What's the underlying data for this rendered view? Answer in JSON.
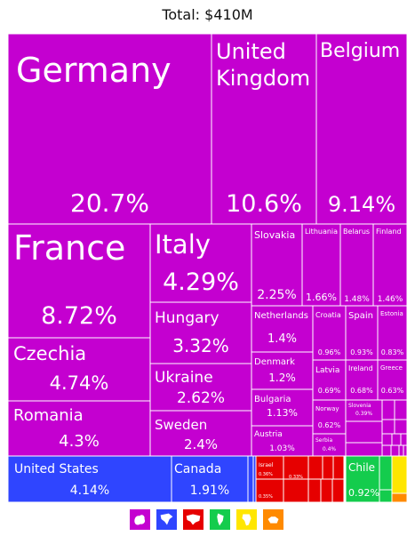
{
  "header": {
    "title": "Total: $410M"
  },
  "colors": {
    "europe": "#c400d0",
    "north_america": "#2f45ff",
    "asia": "#e60000",
    "south_america": "#14cc4d",
    "africa": "#ffe600",
    "oceania": "#ff8a00"
  },
  "legend": [
    {
      "region": "europe",
      "icon": "europe-icon",
      "color": "#c400d0"
    },
    {
      "region": "north-america",
      "icon": "north-america-icon",
      "color": "#2f45ff"
    },
    {
      "region": "asia",
      "icon": "asia-icon",
      "color": "#e60000"
    },
    {
      "region": "south-america",
      "icon": "south-america-icon",
      "color": "#14cc4d"
    },
    {
      "region": "africa",
      "icon": "africa-icon",
      "color": "#ffe600"
    },
    {
      "region": "oceania",
      "icon": "oceania-icon",
      "color": "#ff8a00"
    }
  ],
  "chart_data": {
    "type": "treemap",
    "total": "$410M",
    "items": [
      {
        "name": "Germany",
        "share": "20.7%",
        "region": "europe"
      },
      {
        "name": "United Kingdom",
        "share": "10.6%",
        "region": "europe"
      },
      {
        "name": "Belgium",
        "share": "9.14%",
        "region": "europe"
      },
      {
        "name": "France",
        "share": "8.72%",
        "region": "europe"
      },
      {
        "name": "Czechia",
        "share": "4.74%",
        "region": "europe"
      },
      {
        "name": "Romania",
        "share": "4.3%",
        "region": "europe"
      },
      {
        "name": "Italy",
        "share": "4.29%",
        "region": "europe"
      },
      {
        "name": "Hungary",
        "share": "3.32%",
        "region": "europe"
      },
      {
        "name": "Ukraine",
        "share": "2.62%",
        "region": "europe"
      },
      {
        "name": "Sweden",
        "share": "2.4%",
        "region": "europe"
      },
      {
        "name": "Slovakia",
        "share": "2.25%",
        "region": "europe"
      },
      {
        "name": "Lithuania",
        "share": "1.66%",
        "region": "europe"
      },
      {
        "name": "Belarus",
        "share": "1.48%",
        "region": "europe"
      },
      {
        "name": "Finland",
        "share": "1.46%",
        "region": "europe"
      },
      {
        "name": "Netherlands",
        "share": "1.4%",
        "region": "europe"
      },
      {
        "name": "Croatia",
        "share": "0.96%",
        "region": "europe"
      },
      {
        "name": "Spain",
        "share": "0.93%",
        "region": "europe"
      },
      {
        "name": "Estonia",
        "share": "0.83%",
        "region": "europe"
      },
      {
        "name": "Denmark",
        "share": "1.2%",
        "region": "europe"
      },
      {
        "name": "Latvia",
        "share": "0.69%",
        "region": "europe"
      },
      {
        "name": "Ireland",
        "share": "0.68%",
        "region": "europe"
      },
      {
        "name": "Greece",
        "share": "0.63%",
        "region": "europe"
      },
      {
        "name": "Bulgaria",
        "share": "1.13%",
        "region": "europe"
      },
      {
        "name": "Norway",
        "share": "0.62%",
        "region": "europe"
      },
      {
        "name": "Slovenia",
        "share": "0.39%",
        "region": "europe"
      },
      {
        "name": "Austria",
        "share": "1.03%",
        "region": "europe"
      },
      {
        "name": "Serbia",
        "share": "0.4%",
        "region": "europe"
      },
      {
        "name": "",
        "share": "",
        "region": "europe"
      },
      {
        "name": "",
        "share": "",
        "region": "europe"
      },
      {
        "name": "",
        "share": "",
        "region": "europe"
      },
      {
        "name": "",
        "share": "",
        "region": "europe"
      },
      {
        "name": "",
        "share": "",
        "region": "europe"
      },
      {
        "name": "",
        "share": "",
        "region": "europe"
      },
      {
        "name": "",
        "share": "",
        "region": "europe"
      },
      {
        "name": "",
        "share": "",
        "region": "europe"
      },
      {
        "name": "",
        "share": "",
        "region": "europe"
      },
      {
        "name": "",
        "share": "",
        "region": "europe"
      },
      {
        "name": "",
        "share": "",
        "region": "europe"
      },
      {
        "name": "",
        "share": "",
        "region": "europe"
      },
      {
        "name": "",
        "share": "",
        "region": "europe"
      },
      {
        "name": "United States",
        "share": "4.14%",
        "region": "north_america"
      },
      {
        "name": "Canada",
        "share": "1.91%",
        "region": "north_america"
      },
      {
        "name": "",
        "share": "",
        "region": "north_america"
      },
      {
        "name": "",
        "share": "",
        "region": "north_america"
      },
      {
        "name": "Israel",
        "share": "0.36%",
        "region": "asia"
      },
      {
        "name": "",
        "share": "0.33%",
        "region": "asia"
      },
      {
        "name": "",
        "share": "0.35%",
        "region": "asia"
      },
      {
        "name": "",
        "share": "",
        "region": "asia"
      },
      {
        "name": "",
        "share": "",
        "region": "asia"
      },
      {
        "name": "",
        "share": "",
        "region": "asia"
      },
      {
        "name": "",
        "share": "",
        "region": "asia"
      },
      {
        "name": "",
        "share": "",
        "region": "asia"
      },
      {
        "name": "",
        "share": "",
        "region": "asia"
      },
      {
        "name": "",
        "share": "",
        "region": "asia"
      },
      {
        "name": "Chile",
        "share": "0.92%",
        "region": "south_america"
      },
      {
        "name": "",
        "share": "",
        "region": "south_america"
      },
      {
        "name": "",
        "share": "",
        "region": "south_america"
      },
      {
        "name": "",
        "share": "",
        "region": "africa"
      },
      {
        "name": "",
        "share": "",
        "region": "oceania"
      }
    ]
  }
}
